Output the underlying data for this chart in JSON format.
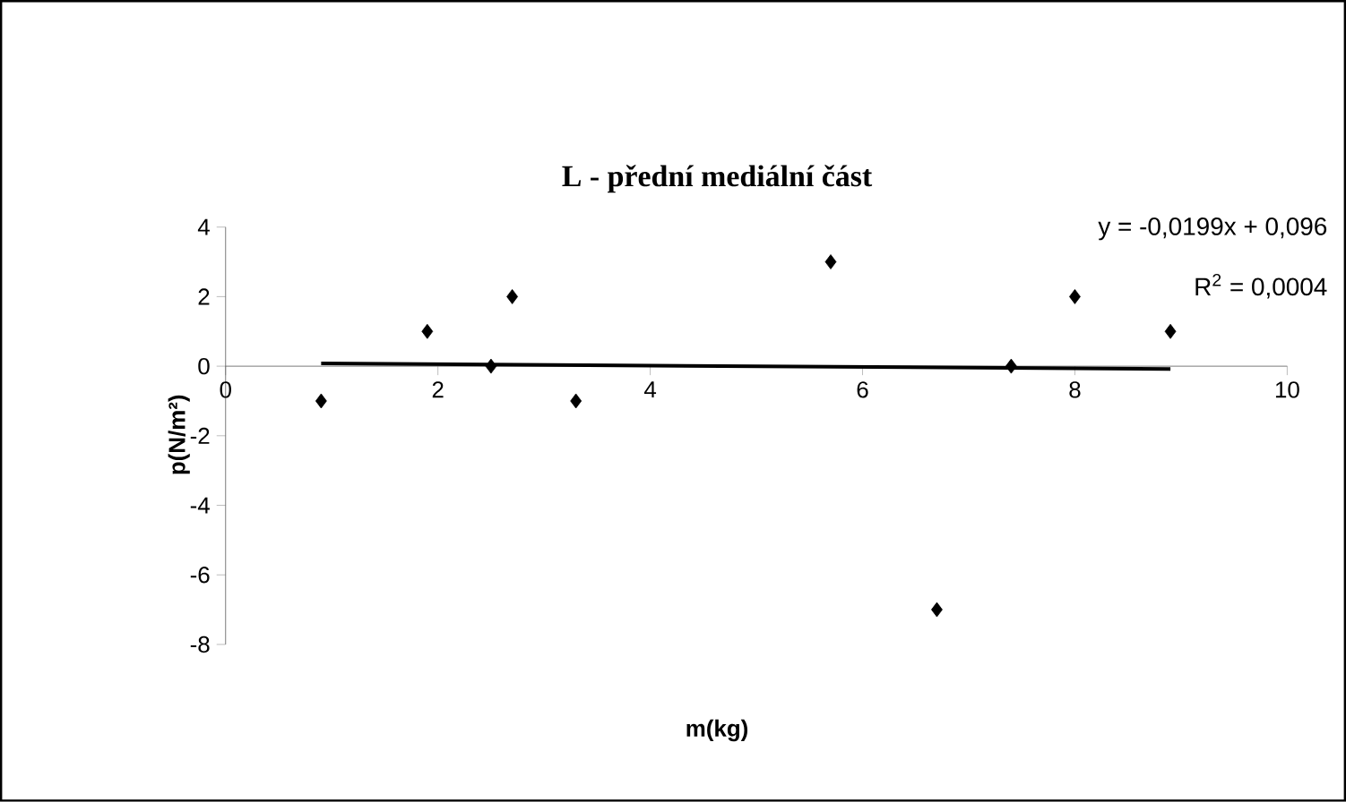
{
  "chart_data": {
    "type": "scatter",
    "title": "L - přední mediální část",
    "xlabel": "m(kg)",
    "ylabel": "p(N/m²)",
    "annotations": [
      "y = -0,0199x + 0,096",
      "R$^{2}$ = 0,0004"
    ],
    "xlim": [
      0,
      10
    ],
    "ylim": [
      -8,
      4
    ],
    "xticks": [
      0,
      2,
      4,
      6,
      8,
      10
    ],
    "yticks": [
      -8,
      -6,
      -4,
      -2,
      0,
      2,
      4
    ],
    "series": [
      {
        "marker": "diamond",
        "color": "#000000",
        "x": [
          0.9,
          1.9,
          2.5,
          2.7,
          3.3,
          5.7,
          6.7,
          7.4,
          8.0,
          8.9
        ],
        "values": [
          -1,
          1,
          0,
          2,
          -1,
          3,
          -7,
          0,
          2,
          1
        ]
      },
      {
        "type": "line",
        "marker": "none",
        "color": "#000000",
        "x": [
          0.9,
          8.9
        ],
        "values": [
          0.08,
          -0.08
        ]
      }
    ]
  }
}
